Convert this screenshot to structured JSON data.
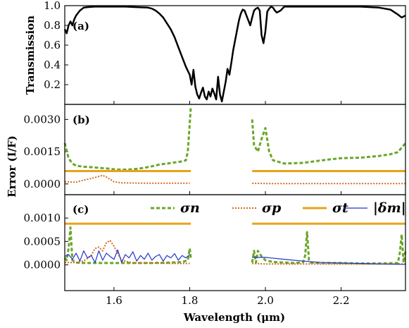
{
  "chart_data": [
    {
      "panel": "(a)",
      "type": "line",
      "ylabel": "Transmission",
      "xlim": [
        1.47,
        2.37
      ],
      "ylim": [
        0.0,
        1.0
      ],
      "yticks": [
        "0.2",
        "0.4",
        "0.6",
        "0.8",
        "1.0"
      ],
      "ytick_values": [
        0.2,
        0.4,
        0.6,
        0.8,
        1.0
      ],
      "series": [
        {
          "color": "#000000",
          "x": [
            1.47,
            1.475,
            1.48,
            1.485,
            1.49,
            1.495,
            1.5,
            1.51,
            1.52,
            1.53,
            1.55,
            1.57,
            1.6,
            1.63,
            1.66,
            1.69,
            1.7,
            1.71,
            1.72,
            1.73,
            1.74,
            1.75,
            1.76,
            1.77,
            1.78,
            1.79,
            1.8,
            1.805,
            1.81,
            1.815,
            1.82,
            1.825,
            1.83,
            1.835,
            1.84,
            1.845,
            1.85,
            1.855,
            1.86,
            1.865,
            1.87,
            1.875,
            1.88,
            1.885,
            1.89,
            1.895,
            1.9,
            1.905,
            1.91,
            1.915,
            1.92,
            1.925,
            1.93,
            1.935,
            1.94,
            1.945,
            1.95,
            1.955,
            1.96,
            1.965,
            1.97,
            1.975,
            1.98,
            1.985,
            1.99,
            1.995,
            2.0,
            2.005,
            2.01,
            2.015,
            2.02,
            2.025,
            2.03,
            2.04,
            2.05,
            2.06,
            2.07,
            2.08,
            2.1,
            2.15,
            2.2,
            2.25,
            2.3,
            2.33,
            2.35,
            2.36,
            2.37
          ],
          "y": [
            0.76,
            0.72,
            0.8,
            0.84,
            0.8,
            0.86,
            0.9,
            0.95,
            0.98,
            0.985,
            0.99,
            0.99,
            0.99,
            0.99,
            0.985,
            0.98,
            0.97,
            0.95,
            0.92,
            0.88,
            0.82,
            0.76,
            0.68,
            0.58,
            0.48,
            0.38,
            0.3,
            0.2,
            0.35,
            0.18,
            0.1,
            0.06,
            0.12,
            0.17,
            0.08,
            0.05,
            0.13,
            0.08,
            0.16,
            0.11,
            0.05,
            0.28,
            0.1,
            0.03,
            0.13,
            0.23,
            0.36,
            0.3,
            0.42,
            0.55,
            0.65,
            0.75,
            0.85,
            0.92,
            0.96,
            0.95,
            0.9,
            0.85,
            0.8,
            0.88,
            0.95,
            0.97,
            0.98,
            0.95,
            0.7,
            0.62,
            0.74,
            0.94,
            0.97,
            0.99,
            0.98,
            0.95,
            0.93,
            0.95,
            0.99,
            0.99,
            0.99,
            0.99,
            0.99,
            0.99,
            0.99,
            0.99,
            0.98,
            0.96,
            0.91,
            0.88,
            0.9
          ]
        }
      ]
    },
    {
      "panel": "(b)",
      "type": "line",
      "ylabel": "Error (I/F)",
      "xlim": [
        1.47,
        2.37
      ],
      "ylim": [
        -0.0005,
        0.0037
      ],
      "yticks": [
        "0.0000",
        "0.0015",
        "0.0030"
      ],
      "ytick_values": [
        0.0,
        0.0015,
        0.003
      ],
      "series": [
        {
          "color": "#6aa628",
          "style": "dashed",
          "segments": [
            {
              "x": [
                1.47,
                1.48,
                1.49,
                1.5,
                1.52,
                1.54,
                1.56,
                1.58,
                1.6,
                1.62,
                1.64,
                1.66,
                1.68,
                1.7,
                1.72,
                1.74,
                1.76,
                1.78,
                1.79,
                1.795,
                1.8,
                1.803
              ],
              "y": [
                0.0019,
                0.0012,
                0.00095,
                0.00085,
                0.0008,
                0.00078,
                0.00075,
                0.00072,
                0.00068,
                0.00066,
                0.00067,
                0.0007,
                0.00075,
                0.00082,
                0.0009,
                0.00095,
                0.001,
                0.00105,
                0.0011,
                0.0015,
                0.0028,
                0.0036
              ]
            },
            {
              "x": [
                1.965,
                1.97,
                1.98,
                1.99,
                2.0,
                2.01,
                2.02,
                2.05,
                2.1,
                2.15,
                2.2,
                2.25,
                2.3,
                2.33,
                2.35,
                2.37
              ],
              "y": [
                0.003,
                0.0018,
                0.0015,
                0.0021,
                0.0026,
                0.0015,
                0.0011,
                0.00095,
                0.00098,
                0.0011,
                0.0012,
                0.00122,
                0.0013,
                0.00138,
                0.00148,
                0.0019
              ]
            }
          ]
        },
        {
          "color": "#d2691e",
          "style": "dotted",
          "segments": [
            {
              "x": [
                1.47,
                1.5,
                1.52,
                1.54,
                1.56,
                1.57,
                1.58,
                1.6,
                1.62,
                1.65,
                1.7,
                1.75,
                1.8
              ],
              "y": [
                0.0001,
                8e-05,
                0.00018,
                0.00025,
                0.00035,
                0.0004,
                0.00032,
                0.0001,
                5e-05,
                4e-05,
                3e-05,
                3e-05,
                3e-05
              ]
            },
            {
              "x": [
                1.965,
                2.0,
                2.05,
                2.1,
                2.15,
                2.2,
                2.25,
                2.3,
                2.37
              ],
              "y": [
                3e-05,
                2e-05,
                2e-05,
                2e-05,
                2e-05,
                2e-05,
                2e-05,
                2e-05,
                2e-05
              ]
            }
          ]
        },
        {
          "color": "#e8a317",
          "style": "solid",
          "segments": [
            {
              "x": [
                1.47,
                1.803
              ],
              "y": [
                0.0006,
                0.0006
              ]
            },
            {
              "x": [
                1.965,
                2.37
              ],
              "y": [
                0.0006,
                0.0006
              ]
            }
          ]
        }
      ]
    },
    {
      "panel": "(c)",
      "type": "line",
      "ylabel": "",
      "xlim": [
        1.47,
        2.37
      ],
      "ylim": [
        -0.00055,
        0.0015
      ],
      "xticks": [
        "1.6",
        "1.8",
        "2.0",
        "2.2"
      ],
      "xtick_values": [
        1.6,
        1.8,
        2.0,
        2.2
      ],
      "xlabel": "Wavelength (μm)",
      "yticks": [
        "0.0000",
        "0.0005",
        "0.0010"
      ],
      "ytick_values": [
        0.0,
        0.0005,
        0.001
      ],
      "legend": {
        "placement": "top-right",
        "entries": [
          "σn",
          "σp",
          "σt",
          "|δm|"
        ]
      },
      "series": [
        {
          "name": "σn",
          "color": "#6aa628",
          "style": "dashed",
          "segments": [
            {
              "x": [
                1.47,
                1.475,
                1.48,
                1.485,
                1.49,
                1.5,
                1.52,
                1.55,
                1.6,
                1.65,
                1.7,
                1.75,
                1.78,
                1.795,
                1.8,
                1.803
              ],
              "y": [
                0.00015,
                0.0001,
                0.00035,
                0.0008,
                0.0001,
                5e-05,
                4e-05,
                4e-05,
                4e-05,
                4e-05,
                4e-05,
                5e-05,
                6e-05,
                0.0001,
                0.00035,
                0.00015
              ]
            },
            {
              "x": [
                1.965,
                1.97,
                1.975,
                1.98,
                1.99,
                2.0,
                2.02,
                2.05,
                2.08,
                2.1,
                2.105,
                2.11,
                2.115,
                2.12,
                2.15,
                2.2,
                2.25,
                2.3,
                2.35,
                2.355,
                2.36,
                2.365,
                2.37
              ],
              "y": [
                5e-05,
                0.0003,
                5e-05,
                0.0003,
                0.00018,
                0.0001,
                6e-05,
                5e-05,
                4e-05,
                6e-05,
                0.0002,
                0.0007,
                0.0001,
                5e-05,
                4e-05,
                4e-05,
                3e-05,
                3e-05,
                4e-05,
                0.00025,
                0.00065,
                5e-05,
                0.0003
              ]
            }
          ]
        },
        {
          "name": "σp",
          "color": "#d2691e",
          "style": "dotted",
          "segments": [
            {
              "x": [
                1.47,
                1.5,
                1.52,
                1.54,
                1.55,
                1.56,
                1.57,
                1.58,
                1.59,
                1.6,
                1.62,
                1.65,
                1.7,
                1.75,
                1.8
              ],
              "y": [
                5e-05,
                5e-05,
                8e-05,
                0.0002,
                0.00035,
                0.00038,
                0.0003,
                0.00048,
                0.00052,
                0.0004,
                0.0001,
                4e-05,
                4e-05,
                3e-05,
                3e-05
              ]
            },
            {
              "x": [
                1.965,
                2.0,
                2.05,
                2.1,
                2.15,
                2.2,
                2.25,
                2.3,
                2.37
              ],
              "y": [
                3e-05,
                2e-05,
                2e-05,
                2e-05,
                2e-05,
                2e-05,
                2e-05,
                2e-05,
                2e-05
              ]
            }
          ]
        },
        {
          "name": "σt",
          "color": "#e8a317",
          "style": "solid",
          "segments": [
            {
              "x": [
                1.47,
                1.803
              ],
              "y": [
                0.00088,
                0.00088
              ]
            },
            {
              "x": [
                1.965,
                2.37
              ],
              "y": [
                0.00088,
                0.00088
              ]
            }
          ]
        },
        {
          "name": "|δm|",
          "color": "#2233cc",
          "style": "solid",
          "segments": [
            {
              "x": [
                1.47,
                1.48,
                1.49,
                1.5,
                1.51,
                1.52,
                1.53,
                1.54,
                1.55,
                1.56,
                1.57,
                1.58,
                1.59,
                1.6,
                1.61,
                1.62,
                1.63,
                1.64,
                1.65,
                1.66,
                1.67,
                1.68,
                1.69,
                1.7,
                1.71,
                1.72,
                1.73,
                1.74,
                1.75,
                1.76,
                1.77,
                1.78,
                1.79,
                1.8
              ],
              "y": [
                0.00018,
                0.00022,
                0.00012,
                0.00025,
                8e-05,
                0.0003,
                0.00015,
                0.0002,
                5e-05,
                0.0003,
                0.0001,
                0.00025,
                0.00018,
                0.00012,
                0.00032,
                5e-05,
                0.00022,
                0.00015,
                0.00028,
                8e-05,
                0.0002,
                0.00012,
                0.00025,
                0.0001,
                0.00018,
                0.00022,
                8e-05,
                0.0002,
                0.00015,
                0.00024,
                0.0001,
                0.0002,
                0.00015,
                0.00022
              ]
            },
            {
              "x": [
                1.965,
                2.0,
                2.05,
                2.1,
                2.15,
                2.2,
                2.25,
                2.3,
                2.37
              ],
              "y": [
                0.00016,
                0.00016,
                0.00012,
                8e-05,
                5e-05,
                4e-05,
                3e-05,
                2e-05,
                1e-05
              ]
            }
          ]
        }
      ]
    }
  ]
}
